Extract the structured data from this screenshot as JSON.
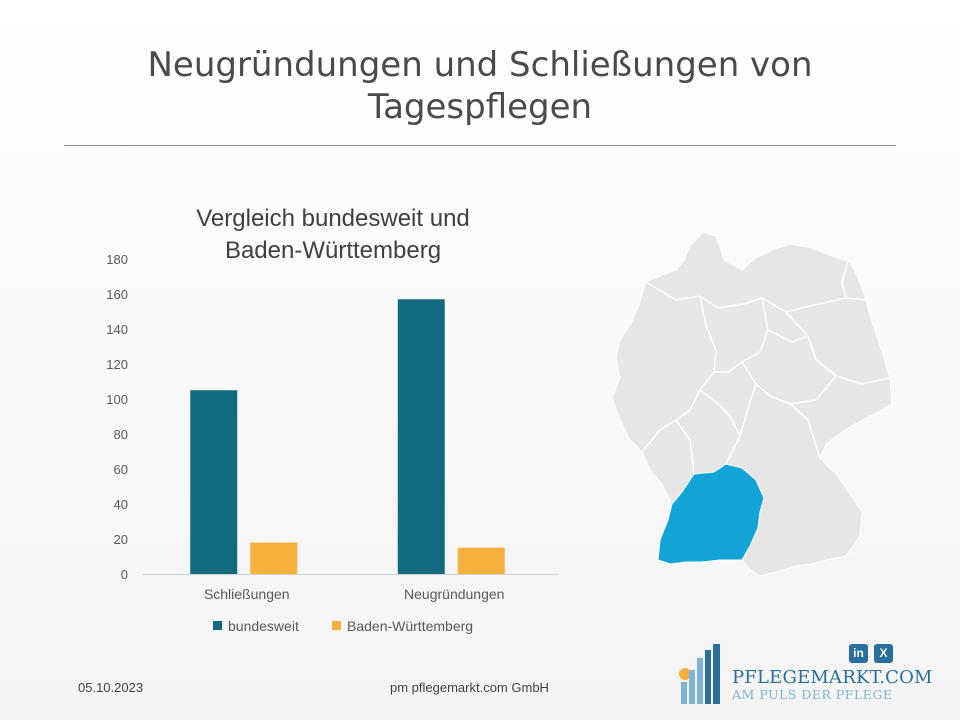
{
  "slide": {
    "title_line1": "Neugründungen und Schließungen von",
    "title_line2": "Tagespflegen"
  },
  "chart_data": {
    "type": "bar",
    "title_line1": "Vergleich bundesweit und",
    "title_line2": "Baden-Württemberg",
    "categories": [
      "Schließungen",
      "Neugründungen"
    ],
    "series": [
      {
        "name": "bundesweit",
        "values": [
          105,
          157
        ],
        "color": "#126a80"
      },
      {
        "name": "Baden-Württemberg",
        "values": [
          18,
          15
        ],
        "color": "#f6b13d"
      }
    ],
    "ylim": [
      0,
      180
    ],
    "yticks": [
      "0",
      "20",
      "40",
      "60",
      "80",
      "100",
      "120",
      "140",
      "160",
      "180"
    ],
    "grid": false,
    "legend_position": "bottom"
  },
  "map": {
    "highlight_color": "#12a4d6",
    "base_color": "#e6e6e6",
    "border_color": "#ffffff"
  },
  "footer": {
    "date": "05.10.2023",
    "company": "pm pflegemarkt.com GmbH"
  },
  "social": {
    "linkedin_label": "in",
    "xing_label": "X"
  },
  "logo": {
    "name": "PFLEGEMARKT.COM",
    "slogan": "AM PULS DER PFLEGE",
    "colors": [
      "#7fb3d5",
      "#2a6e9b",
      "#f6b13d"
    ]
  }
}
